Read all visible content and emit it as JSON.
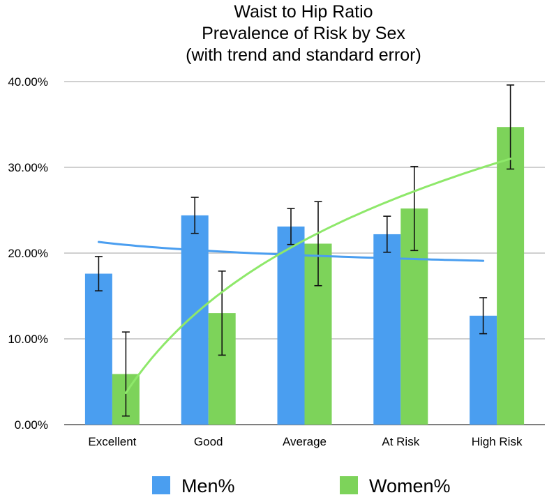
{
  "chart_data": {
    "type": "bar",
    "title_lines": [
      "Waist to Hip Ratio",
      "Prevalence of Risk by Sex",
      "(with trend and standard error)"
    ],
    "categories": [
      "Excellent",
      "Good",
      "Average",
      "At Risk",
      "High Risk"
    ],
    "ylim": [
      0,
      40
    ],
    "yticks": [
      "0.00%",
      "10.00%",
      "20.00%",
      "30.00%",
      "40.00%"
    ],
    "grid": true,
    "legend_position": "bottom",
    "series": [
      {
        "name": "Men%",
        "color": "#4a9ef0",
        "values": [
          17.6,
          24.4,
          23.1,
          22.2,
          12.7
        ],
        "error": [
          2.0,
          2.1,
          2.1,
          2.1,
          2.1
        ]
      },
      {
        "name": "Women%",
        "color": "#7dd35a",
        "values": [
          5.9,
          13.0,
          21.1,
          25.2,
          34.7
        ],
        "error": [
          4.9,
          4.9,
          4.9,
          4.9,
          4.9
        ]
      }
    ],
    "trendlines": [
      {
        "series": "Men%",
        "color": "#4a9ef0",
        "type": "log",
        "values": [
          21.3,
          19.1
        ]
      },
      {
        "series": "Women%",
        "color": "#8ee86a",
        "type": "log",
        "values": [
          3.7,
          31.0
        ]
      }
    ]
  }
}
